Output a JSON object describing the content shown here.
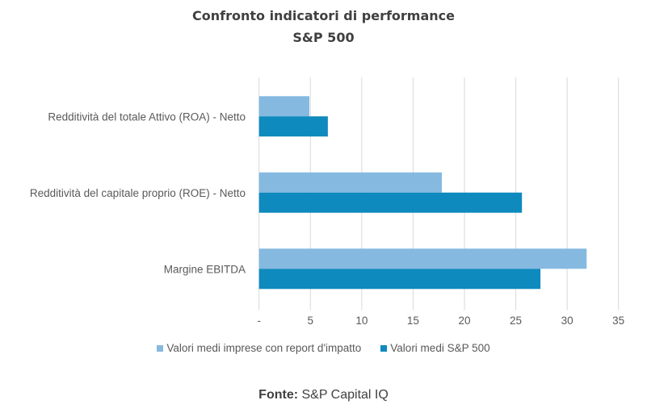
{
  "chart_data": {
    "type": "bar",
    "orientation": "horizontal",
    "title": "Confronto indicatori di performance",
    "subtitle": "S&P 500",
    "categories": [
      "Redditività del totale Attivo (ROA) - Netto",
      "Redditività del capitale proprio (ROE) - Netto",
      "Margine EBITDA"
    ],
    "series": [
      {
        "name": "Valori medi imprese con report d'impatto",
        "values": [
          4.9,
          17.8,
          31.9
        ],
        "color": "#85B9E0"
      },
      {
        "name": "Valori medi S&P 500",
        "values": [
          6.7,
          25.6,
          27.4
        ],
        "color": "#0E8ABE"
      }
    ],
    "xlim": [
      0,
      35
    ],
    "xticks": [
      0,
      5,
      10,
      15,
      20,
      25,
      30,
      35
    ],
    "xtick_labels": [
      "-",
      "5",
      "10",
      "15",
      "20",
      "25",
      "30",
      "35"
    ],
    "grid": "vertical",
    "legend": "bottom"
  },
  "source": {
    "label": "Fonte:",
    "text": "S&P Capital IQ"
  }
}
